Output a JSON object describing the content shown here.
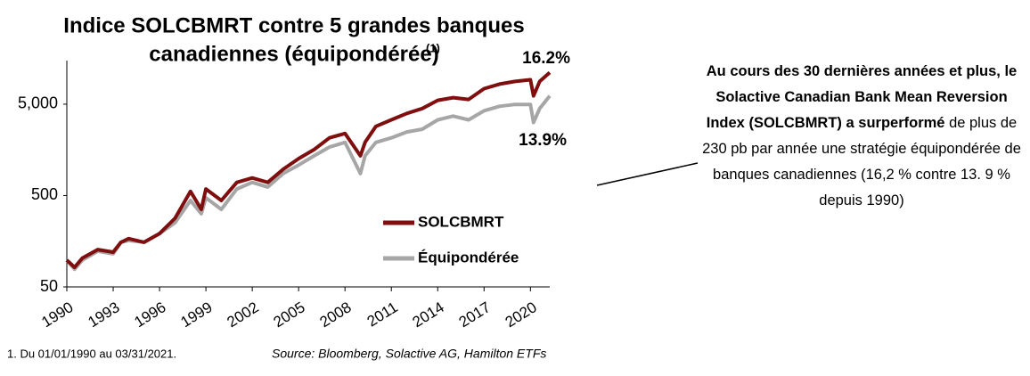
{
  "chart_data": {
    "type": "line",
    "title_lines": [
      "Indice SOLCBMRT contre 5 grandes banques",
      "canadiennes (équipondérée)"
    ],
    "title_note": "(1)",
    "x": [
      1990,
      1990.5,
      1991,
      1992,
      1993,
      1993.5,
      1994,
      1995,
      1996,
      1997,
      1998,
      1998.7,
      1999,
      2000,
      2001,
      2002,
      2003,
      2004,
      2005,
      2006,
      2007,
      2008,
      2009,
      2009.3,
      2010,
      2011,
      2012,
      2013,
      2014,
      2015,
      2016,
      2017,
      2018,
      2019,
      2020,
      2020.2,
      2020.6,
      2021.25
    ],
    "series": [
      {
        "name": "SOLCBMRT",
        "color": "#7f0f0f",
        "values": [
          98,
          82,
          103,
          128,
          120,
          154,
          169,
          154,
          192,
          282,
          555,
          353,
          590,
          442,
          697,
          780,
          697,
          970,
          1268,
          1590,
          2140,
          2390,
          1360,
          1910,
          2860,
          3370,
          3960,
          4480,
          5510,
          5900,
          5640,
          7390,
          8290,
          8870,
          9250,
          6160,
          8870,
          11090
        ]
      },
      {
        "name": "Équipondérée",
        "color": "#a6a6a6",
        "values": [
          98,
          78,
          98,
          123,
          115,
          154,
          161,
          154,
          192,
          252,
          442,
          316,
          472,
          353,
          590,
          697,
          620,
          870,
          1080,
          1360,
          1700,
          1910,
          870,
          1360,
          1910,
          2140,
          2480,
          2660,
          3370,
          3700,
          3370,
          4240,
          4740,
          4970,
          4970,
          3150,
          4480,
          6160
        ]
      }
    ],
    "xlim": [
      1990,
      2021.25
    ],
    "xticks": [
      1990,
      1993,
      1996,
      1999,
      2002,
      2005,
      2008,
      2011,
      2014,
      2017,
      2020
    ],
    "ylim": [
      50,
      15000
    ],
    "yticks": [
      50,
      500,
      {
        "value": 5000,
        "label": "5,000"
      }
    ],
    "log_y": true,
    "legend": "center-right",
    "annotations": [
      {
        "text": "16.2%",
        "color": "#1f1fbf"
      },
      {
        "text": "13.9%",
        "color": "#1f1fbf"
      }
    ],
    "footnote": "1. Du 01/01/1990 au 03/31/2021.",
    "source": "Source: Bloomberg, Solactive AG, Hamilton ETFs",
    "side_text": [
      {
        "text": "Au cours des 30 dernières années et plus, le Solactive Canadian Bank Mean Reversion Index (SOLCBMRT) a ",
        "bold": true
      },
      {
        "text": "surperformé",
        "bold": true
      },
      {
        "text": " de plus de 230 pb par année une stratégie équipondérée de banques canadiennes (16,2 % contre 13. 9 % depuis 1990)",
        "bold": false
      }
    ]
  }
}
